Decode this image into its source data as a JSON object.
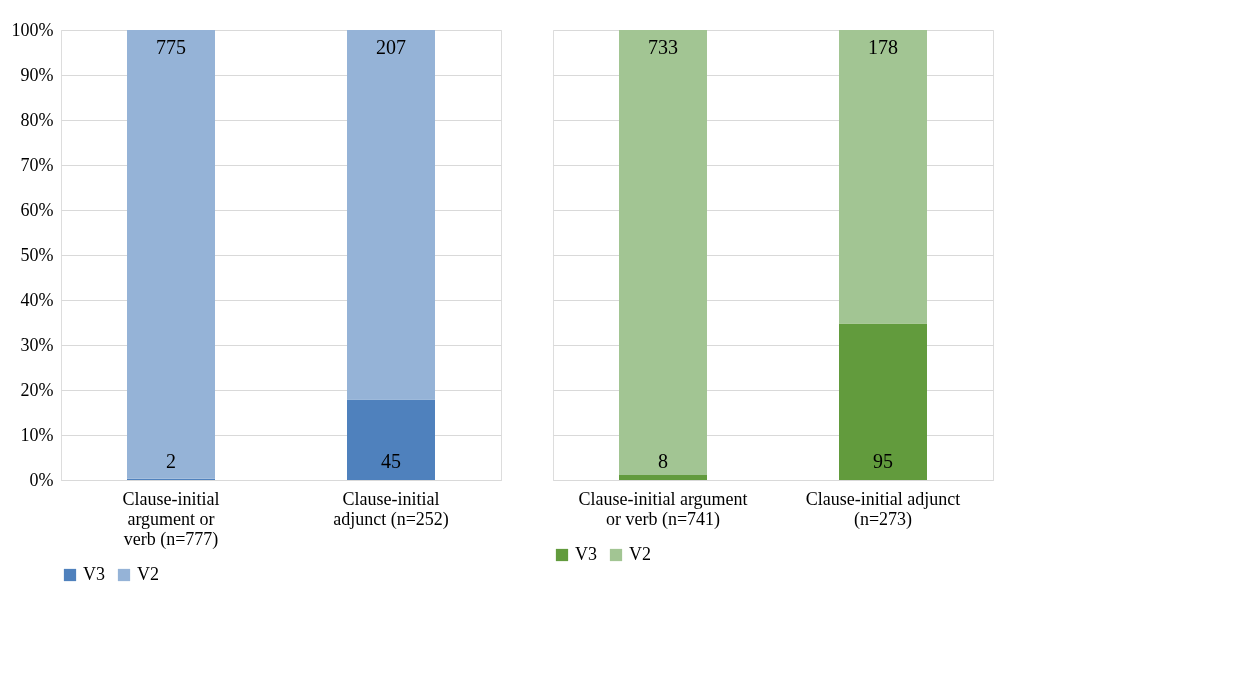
{
  "chart_data": [
    {
      "type": "bar",
      "stacked": true,
      "categories": [
        "Clause-initial argument or verb (n=777)",
        "Clause-initial adjunct (n=252)"
      ],
      "series": [
        {
          "name": "V3",
          "color": "#4f81bd",
          "values": [
            0.3,
            17.9
          ]
        },
        {
          "name": "V2",
          "color": "#95b3d7",
          "values": [
            99.7,
            82.1
          ]
        }
      ],
      "annotations": [
        {
          "text": "2",
          "x": "Clause-initial argument or verb (n=777)",
          "y": 0
        },
        {
          "text": "45",
          "x": "Clause-initial adjunct (n=252)",
          "y": 0
        },
        {
          "text": "775",
          "x": "Clause-initial argument or verb (n=777)",
          "y": 100
        },
        {
          "text": "207",
          "x": "Clause-initial adjunct (n=252)",
          "y": 100
        }
      ],
      "ylim": [
        0,
        100
      ],
      "yticks": [
        {
          "value": 0,
          "label": "0%"
        },
        {
          "value": 10,
          "label": "10%"
        },
        {
          "value": 20,
          "label": "20%"
        },
        {
          "value": 30,
          "label": "30%"
        },
        {
          "value": 40,
          "label": "40%"
        },
        {
          "value": 50,
          "label": "50%"
        },
        {
          "value": 60,
          "label": "60%"
        },
        {
          "value": 70,
          "label": "70%"
        },
        {
          "value": 80,
          "label": "80%"
        },
        {
          "value": 90,
          "label": "90%"
        },
        {
          "value": 100,
          "label": "100%"
        }
      ],
      "grid": "y",
      "legend": "bottom"
    },
    {
      "type": "bar",
      "stacked": true,
      "categories": [
        "Clause-initial argument or verb (n=741)",
        "Clause-initial adjunct (n=273)"
      ],
      "series": [
        {
          "name": "V3",
          "color": "#629b3d",
          "values": [
            1.1,
            34.8
          ]
        },
        {
          "name": "V2",
          "color": "#a2c593",
          "values": [
            98.9,
            65.2
          ]
        }
      ],
      "annotations": [
        {
          "text": "8",
          "x": "Clause-initial argument or verb (n=741)",
          "y": 0
        },
        {
          "text": "95",
          "x": "Clause-initial adjunct (n=273)",
          "y": 0
        },
        {
          "text": "733",
          "x": "Clause-initial argument or verb (n=741)",
          "y": 100
        },
        {
          "text": "178",
          "x": "Clause-initial adjunct (n=273)",
          "y": 100
        }
      ],
      "ylim": [
        0,
        100
      ],
      "yticks": [
        0,
        10,
        20,
        30,
        40,
        50,
        60,
        70,
        80,
        90,
        100
      ],
      "tick_labels": "x",
      "grid": "y",
      "legend": "bottom"
    }
  ]
}
